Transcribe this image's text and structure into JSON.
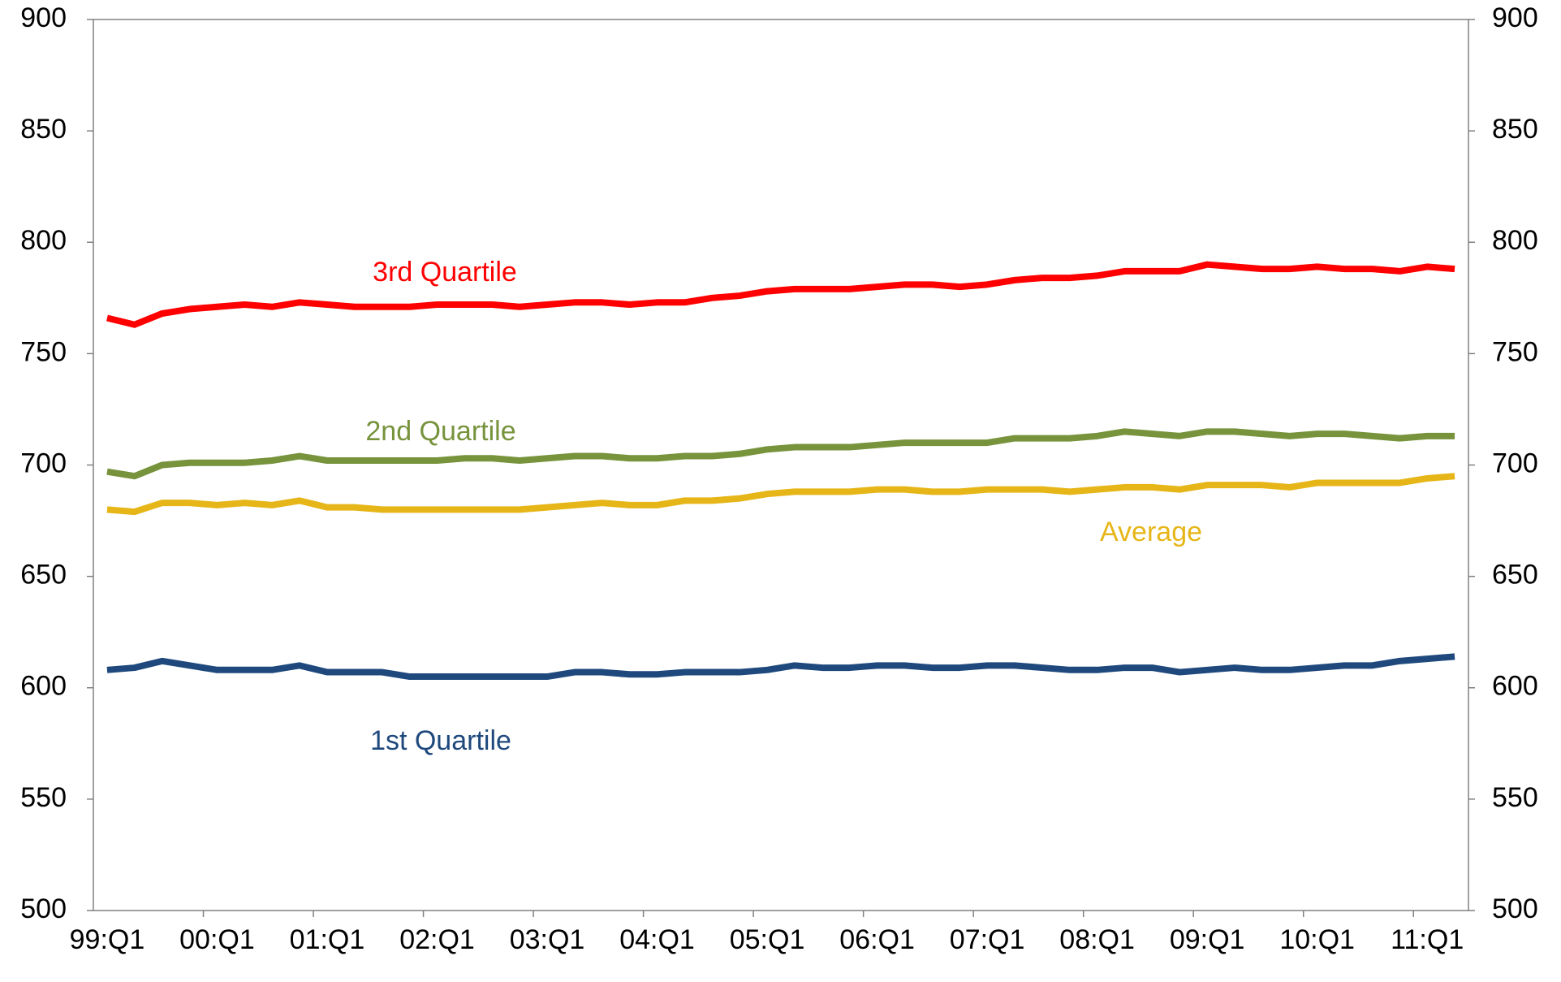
{
  "chart_data": {
    "type": "line",
    "categories": [
      "99:Q1",
      null,
      null,
      null,
      "00:Q1",
      null,
      null,
      null,
      "01:Q1",
      null,
      null,
      null,
      "02:Q1",
      null,
      null,
      null,
      "03:Q1",
      null,
      null,
      null,
      "04:Q1",
      null,
      null,
      null,
      "05:Q1",
      null,
      null,
      null,
      "06:Q1",
      null,
      null,
      null,
      "07:Q1",
      null,
      null,
      null,
      "08:Q1",
      null,
      null,
      null,
      "09:Q1",
      null,
      null,
      null,
      "10:Q1",
      null,
      null,
      null,
      "11:Q1",
      null
    ],
    "series": [
      {
        "name": "3rd Quartile",
        "color": "#ff0000",
        "values": [
          766,
          763,
          768,
          770,
          771,
          772,
          771,
          773,
          772,
          771,
          771,
          771,
          772,
          772,
          772,
          771,
          772,
          773,
          773,
          772,
          773,
          773,
          775,
          776,
          778,
          779,
          779,
          779,
          780,
          781,
          781,
          780,
          781,
          783,
          784,
          784,
          785,
          787,
          787,
          787,
          790,
          789,
          788,
          788,
          789,
          788,
          788,
          787,
          789,
          788
        ]
      },
      {
        "name": "2nd Quartile",
        "color": "#77933c",
        "values": [
          697,
          695,
          700,
          701,
          701,
          701,
          702,
          704,
          702,
          702,
          702,
          702,
          702,
          703,
          703,
          702,
          703,
          704,
          704,
          703,
          703,
          704,
          704,
          705,
          707,
          708,
          708,
          708,
          709,
          710,
          710,
          710,
          710,
          712,
          712,
          712,
          713,
          715,
          714,
          713,
          715,
          715,
          714,
          713,
          714,
          714,
          713,
          712,
          713,
          713
        ]
      },
      {
        "name": "Average",
        "color": "#e6b618",
        "values": [
          680,
          679,
          683,
          683,
          682,
          683,
          682,
          684,
          681,
          681,
          680,
          680,
          680,
          680,
          680,
          680,
          681,
          682,
          683,
          682,
          682,
          684,
          684,
          685,
          687,
          688,
          688,
          688,
          689,
          689,
          688,
          688,
          689,
          689,
          689,
          688,
          689,
          690,
          690,
          689,
          691,
          691,
          691,
          690,
          692,
          692,
          692,
          692,
          694,
          695
        ]
      },
      {
        "name": "1st Quartile",
        "color": "#1f497d",
        "values": [
          608,
          609,
          612,
          610,
          608,
          608,
          608,
          610,
          607,
          607,
          607,
          605,
          605,
          605,
          605,
          605,
          605,
          607,
          607,
          606,
          606,
          607,
          607,
          607,
          608,
          610,
          609,
          609,
          610,
          610,
          609,
          609,
          610,
          610,
          609,
          608,
          608,
          609,
          609,
          607,
          608,
          609,
          608,
          608,
          609,
          610,
          610,
          612,
          613,
          614
        ]
      }
    ],
    "ylim": [
      500,
      900
    ],
    "yticks": [
      500,
      550,
      600,
      650,
      700,
      750,
      800,
      850,
      900
    ],
    "y2lim": [
      500,
      900
    ],
    "y2ticks": [
      500,
      550,
      600,
      650,
      700,
      750,
      800,
      850,
      900
    ]
  }
}
